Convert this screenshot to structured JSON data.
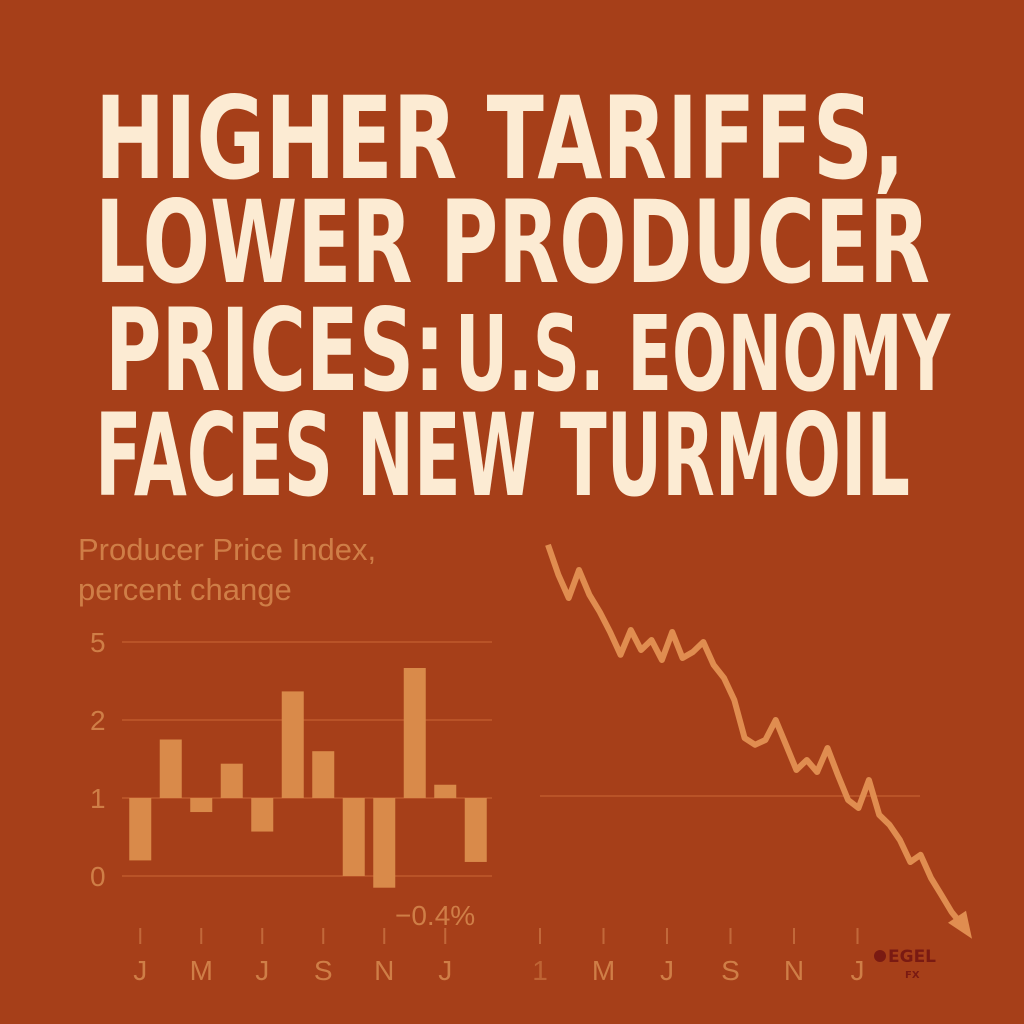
{
  "headline": [
    "HIGHER TARIFFS,",
    "LOWER PRODUCER",
    "PRICES:",
    "U.S. EONOMY",
    "FACES NEW TURMOIL"
  ],
  "logo": {
    "name": "EGEL",
    "sub": "FX"
  },
  "chart_data": [
    {
      "type": "bar",
      "title": "Producer Price Index, percent change",
      "categories": [
        "J",
        null,
        "M",
        null,
        "J",
        null,
        "S",
        null,
        "N",
        null,
        "J",
        null
      ],
      "values": [
        0.2,
        1.75,
        0.82,
        1.44,
        0.57,
        3.1,
        1.6,
        0,
        -0.15,
        4.0,
        1.17,
        0.18
      ],
      "base": 1,
      "color": "#d98a4a",
      "yticks": [
        0,
        1,
        2,
        5
      ],
      "grid": true,
      "annotation": "−0.4%"
    },
    {
      "type": "line",
      "color": "#e08d50",
      "x_labels": [
        "1",
        "M",
        "J",
        "S",
        "N",
        "J"
      ],
      "values": [
        9.88,
        9.13,
        8.55,
        9.25,
        8.63,
        8.2,
        7.7,
        7.13,
        7.75,
        7.25,
        7.5,
        7.0,
        7.7,
        7.05,
        7.2,
        7.45,
        6.88,
        6.55,
        6.0,
        5.05,
        4.88,
        5.0,
        5.5,
        4.88,
        4.25,
        4.5,
        4.2,
        4.8,
        4.13,
        3.5,
        3.3,
        4.0,
        3.13,
        2.88,
        2.5,
        1.95,
        2.13,
        1.55,
        1.13,
        0.7,
        0.38
      ],
      "ylim": [
        0,
        10
      ]
    }
  ]
}
